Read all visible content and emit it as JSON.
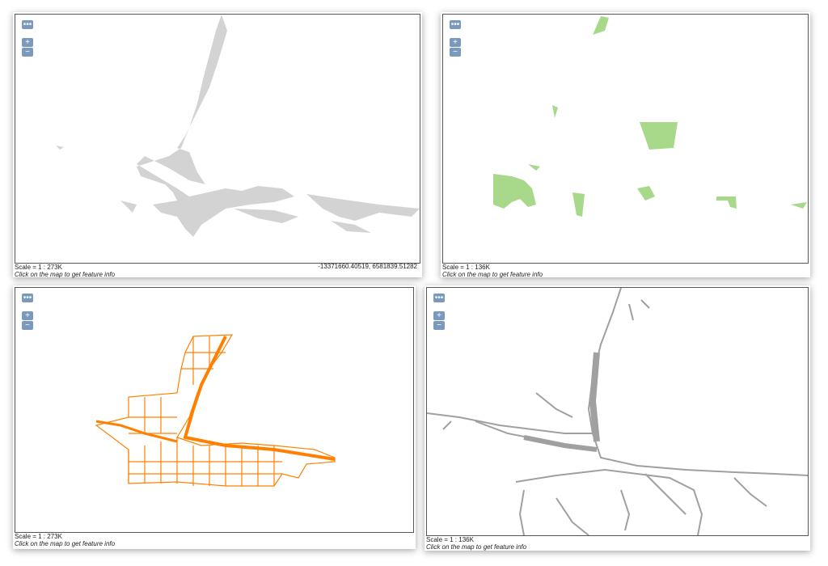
{
  "controls": {
    "menu": "•••",
    "zoom_in": "+",
    "zoom_out": "−"
  },
  "panels": [
    {
      "scale": "Scale = 1 : 273K",
      "info": "Click on the map to get feature info",
      "coordinates": "-13371660.40519, 6581839.51282"
    },
    {
      "scale": "Scale = 1 : 136K",
      "info": "Click on the map to get feature info"
    },
    {
      "scale": "Scale = 1 : 273K",
      "info": "Click on the map to get feature info"
    },
    {
      "scale": "Scale = 1 : 136K",
      "info": "Click on the map to get feature info"
    }
  ]
}
